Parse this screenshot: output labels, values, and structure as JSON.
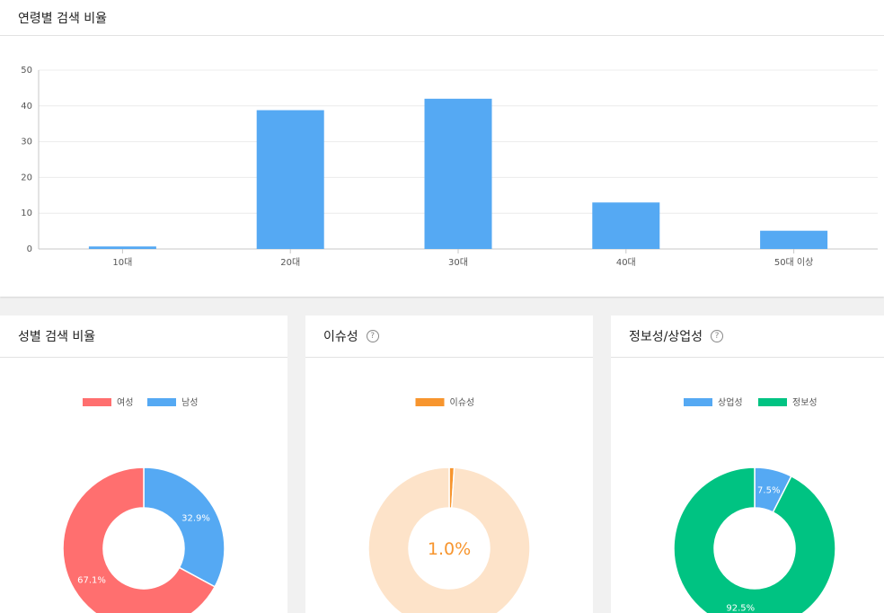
{
  "age_card": {
    "title": "연령별 검색 비율"
  },
  "gender_card": {
    "title": "성별 검색 비율"
  },
  "issue_card": {
    "title": "이슈성",
    "help": "?"
  },
  "info_card": {
    "title": "정보성/상업성",
    "help": "?"
  },
  "chart_data": [
    {
      "type": "bar",
      "categories": [
        "10대",
        "20대",
        "30대",
        "40대",
        "50대 이상"
      ],
      "values": [
        0.7,
        38.8,
        42.0,
        13.0,
        5.1
      ],
      "title": "연령별 검색 비율",
      "ylim": [
        0,
        50
      ],
      "yticks": [
        "0",
        "10",
        "20",
        "30",
        "40",
        "50"
      ],
      "grid": true,
      "color": "#55a9f3"
    },
    {
      "type": "pie",
      "title": "성별 검색 비율",
      "legend": [
        {
          "label": "여성",
          "color": "#ff6f6f"
        },
        {
          "label": "남성",
          "color": "#55a9f3"
        }
      ],
      "slices": [
        {
          "name": "남성",
          "value": 32.9,
          "label": "32.9%",
          "color": "#55a9f3"
        },
        {
          "name": "여성",
          "value": 67.1,
          "label": "67.1%",
          "color": "#ff6f6f"
        }
      ]
    },
    {
      "type": "pie",
      "title": "이슈성",
      "legend": [
        {
          "label": "이슈성",
          "color": "#f7952e"
        }
      ],
      "slices": [
        {
          "name": "이슈성",
          "value": 1.0,
          "color": "#f7952e"
        },
        {
          "name": "rest",
          "value": 99.0,
          "color": "#fde3c9"
        }
      ],
      "center_label": "1.0%",
      "center_color": "#f7952e"
    },
    {
      "type": "pie",
      "title": "정보성/상업성",
      "legend": [
        {
          "label": "상업성",
          "color": "#55a9f3"
        },
        {
          "label": "정보성",
          "color": "#00c382"
        }
      ],
      "slices": [
        {
          "name": "상업성",
          "value": 7.5,
          "label": "7.5%",
          "color": "#55a9f3"
        },
        {
          "name": "정보성",
          "value": 92.5,
          "label": "92.5%",
          "color": "#00c382"
        }
      ]
    }
  ]
}
